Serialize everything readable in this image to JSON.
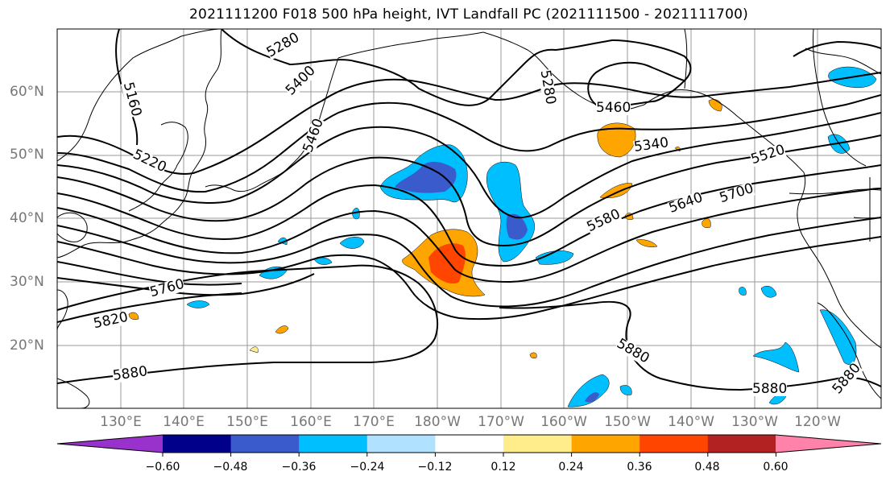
{
  "title": "2021111200 F018 500 hPa height, IVT Landfall PC (2021111500 - 2021111700)",
  "lat_labels": [
    {
      "text": "60°N"
    },
    {
      "text": "50°N"
    },
    {
      "text": "40°N"
    },
    {
      "text": "30°N"
    },
    {
      "text": "20°N"
    }
  ],
  "lon_labels": [
    {
      "text": "130°E"
    },
    {
      "text": "140°E"
    },
    {
      "text": "150°E"
    },
    {
      "text": "160°E"
    },
    {
      "text": "170°E"
    },
    {
      "text": "180°W"
    },
    {
      "text": "170°W"
    },
    {
      "text": "160°W"
    },
    {
      "text": "150°W"
    },
    {
      "text": "140°W"
    },
    {
      "text": "130°W"
    },
    {
      "text": "120°W"
    }
  ],
  "contour_labels": [
    {
      "text": "5160"
    },
    {
      "text": "5280"
    },
    {
      "text": "5400"
    },
    {
      "text": "5460"
    },
    {
      "text": "5220"
    },
    {
      "text": "5280"
    },
    {
      "text": "5460"
    },
    {
      "text": "5340"
    },
    {
      "text": "5520"
    },
    {
      "text": "5580"
    },
    {
      "text": "5640"
    },
    {
      "text": "5700"
    },
    {
      "text": "5760"
    },
    {
      "text": "5820"
    },
    {
      "text": "5880"
    },
    {
      "text": "5880"
    },
    {
      "text": "5880"
    },
    {
      "text": "5880"
    }
  ],
  "colorbar": {
    "colors": [
      "#9932cc",
      "#00008b",
      "#3a5bcc",
      "#00bfff",
      "#b0e2ff",
      "#ffffff",
      "#ffec8b",
      "#ffa500",
      "#ff4500",
      "#b22222",
      "#ff82ab"
    ],
    "ticks": [
      "−0.60",
      "−0.48",
      "−0.36",
      "−0.24",
      "−0.12",
      "0.12",
      "0.24",
      "0.36",
      "0.48",
      "0.60"
    ]
  }
}
